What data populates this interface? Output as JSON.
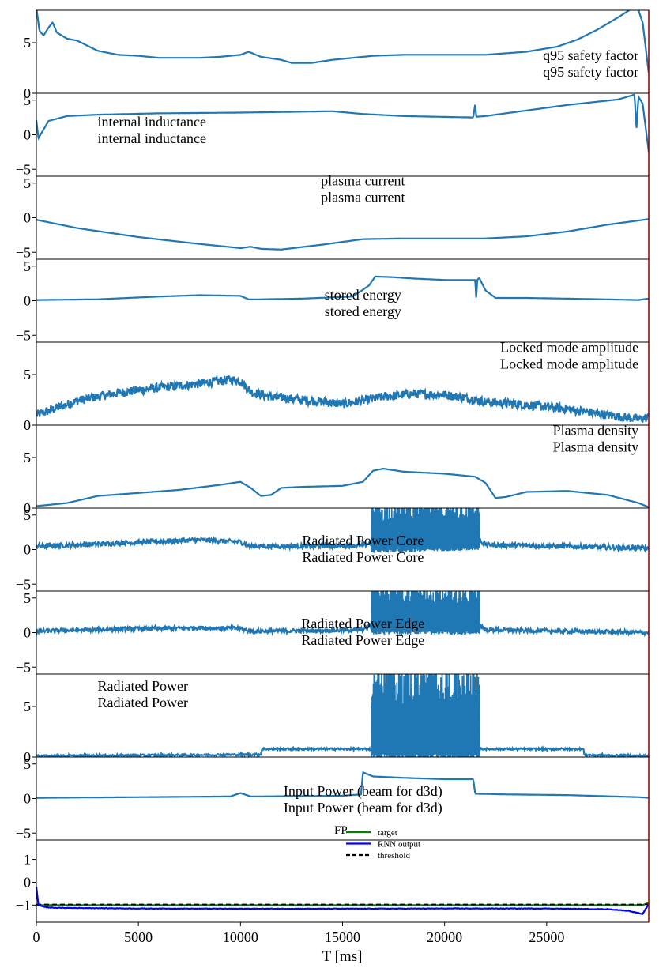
{
  "chart_data": {
    "type": "line",
    "xlabel": "T [ms]",
    "xlim": [
      0,
      30000
    ],
    "xticks": [
      0,
      5000,
      10000,
      15000,
      20000,
      25000
    ],
    "disruption_marker_color": "#8b0000",
    "series_color": "#1f77b4",
    "panels": [
      {
        "label": "q95 safety factor",
        "label_repeat": "q95 safety factor",
        "label_anchor": "end",
        "label_x": 29500,
        "label_y_frac": 0.75,
        "ylim": [
          0,
          8.2
        ],
        "yticks": [
          0,
          5
        ],
        "noise": 0,
        "points": [
          [
            0,
            8.5
          ],
          [
            150,
            6.2
          ],
          [
            350,
            5.7
          ],
          [
            600,
            6.5
          ],
          [
            800,
            7.0
          ],
          [
            1000,
            6.0
          ],
          [
            1500,
            5.4
          ],
          [
            2000,
            5.2
          ],
          [
            3000,
            4.2
          ],
          [
            4000,
            3.8
          ],
          [
            5000,
            3.7
          ],
          [
            6000,
            3.5
          ],
          [
            7000,
            3.5
          ],
          [
            8000,
            3.5
          ],
          [
            9000,
            3.6
          ],
          [
            10000,
            3.8
          ],
          [
            10400,
            4.1
          ],
          [
            11000,
            3.6
          ],
          [
            12000,
            3.3
          ],
          [
            12500,
            3.0
          ],
          [
            13500,
            3.0
          ],
          [
            14500,
            3.3
          ],
          [
            15500,
            3.5
          ],
          [
            16500,
            3.7
          ],
          [
            18000,
            3.8
          ],
          [
            20000,
            3.8
          ],
          [
            22000,
            3.8
          ],
          [
            24000,
            4.1
          ],
          [
            25500,
            4.6
          ],
          [
            26500,
            5.3
          ],
          [
            27500,
            6.3
          ],
          [
            28500,
            7.5
          ],
          [
            29200,
            8.4
          ],
          [
            29500,
            8.2
          ],
          [
            29700,
            7.0
          ],
          [
            30000,
            2.0
          ]
        ]
      },
      {
        "label": "internal inductance",
        "label_repeat": "internal inductance",
        "label_anchor": "start",
        "label_x": 3000,
        "label_y_frac": 0.55,
        "ylim": [
          -6,
          6
        ],
        "yticks": [
          -5,
          0,
          5
        ],
        "noise": 0,
        "points": [
          [
            0,
            2.1
          ],
          [
            100,
            -0.5
          ],
          [
            300,
            0.5
          ],
          [
            600,
            2.0
          ],
          [
            1500,
            2.7
          ],
          [
            3000,
            2.9
          ],
          [
            6000,
            3.1
          ],
          [
            10000,
            3.2
          ],
          [
            14500,
            3.4
          ],
          [
            16000,
            3.0
          ],
          [
            18000,
            2.7
          ],
          [
            21400,
            2.5
          ],
          [
            21500,
            4.5
          ],
          [
            21550,
            2.6
          ],
          [
            22000,
            2.7
          ],
          [
            24000,
            3.5
          ],
          [
            26000,
            4.3
          ],
          [
            28500,
            5.1
          ],
          [
            29300,
            5.8
          ],
          [
            29400,
            1.0
          ],
          [
            29500,
            5.5
          ],
          [
            29700,
            4.5
          ],
          [
            30000,
            -2.5
          ]
        ]
      },
      {
        "label": "plasma current",
        "label_repeat": "plasma current",
        "label_anchor": "middle",
        "label_x": 16000,
        "label_y_frac": 0.26,
        "ylim": [
          -6,
          6
        ],
        "yticks": [
          -5,
          0,
          5
        ],
        "noise": 0,
        "points": [
          [
            0,
            -0.3
          ],
          [
            2000,
            -1.5
          ],
          [
            5000,
            -2.8
          ],
          [
            8000,
            -3.8
          ],
          [
            10000,
            -4.4
          ],
          [
            10500,
            -4.2
          ],
          [
            11000,
            -4.5
          ],
          [
            12000,
            -4.6
          ],
          [
            14000,
            -3.9
          ],
          [
            16000,
            -3.1
          ],
          [
            18000,
            -3.0
          ],
          [
            20000,
            -3.0
          ],
          [
            22000,
            -3.0
          ],
          [
            24000,
            -2.7
          ],
          [
            26000,
            -2.0
          ],
          [
            28000,
            -1.0
          ],
          [
            30000,
            -0.2
          ]
        ]
      },
      {
        "label": "stored energy",
        "label_repeat": "stored energy",
        "label_anchor": "middle",
        "label_x": 16000,
        "label_y_frac": 0.64,
        "ylim": [
          -6,
          6
        ],
        "yticks": [
          -5,
          0,
          5
        ],
        "noise": 0,
        "points": [
          [
            0,
            0.1
          ],
          [
            3000,
            0.2
          ],
          [
            6000,
            0.6
          ],
          [
            8000,
            0.8
          ],
          [
            10000,
            0.7
          ],
          [
            10400,
            0.2
          ],
          [
            11000,
            0.2
          ],
          [
            13000,
            0.3
          ],
          [
            15500,
            0.6
          ],
          [
            16300,
            2.2
          ],
          [
            16600,
            3.5
          ],
          [
            17500,
            3.4
          ],
          [
            18500,
            3.2
          ],
          [
            20000,
            3.0
          ],
          [
            21500,
            3.0
          ],
          [
            21550,
            0.2
          ],
          [
            21600,
            3.0
          ],
          [
            21700,
            3.3
          ],
          [
            22000,
            1.5
          ],
          [
            22500,
            0.4
          ],
          [
            24000,
            0.4
          ],
          [
            26000,
            0.3
          ],
          [
            29500,
            0.1
          ],
          [
            30000,
            0.3
          ]
        ]
      },
      {
        "label": "Locked mode amplitude",
        "label_repeat": "Locked mode amplitude",
        "label_anchor": "end",
        "label_x": 29500,
        "label_y_frac": 0.27,
        "ylim": [
          0,
          8.2
        ],
        "yticks": [
          0,
          5
        ],
        "noise": 0.45,
        "points": [
          [
            0,
            1.0
          ],
          [
            2000,
            2.4
          ],
          [
            4000,
            3.2
          ],
          [
            6000,
            3.7
          ],
          [
            8000,
            4.1
          ],
          [
            9500,
            4.5
          ],
          [
            10000,
            4.4
          ],
          [
            10500,
            3.3
          ],
          [
            11500,
            2.8
          ],
          [
            13000,
            2.5
          ],
          [
            15000,
            2.1
          ],
          [
            16000,
            2.4
          ],
          [
            17000,
            2.8
          ],
          [
            18500,
            3.1
          ],
          [
            20000,
            3.0
          ],
          [
            21000,
            2.7
          ],
          [
            22000,
            2.3
          ],
          [
            24000,
            2.0
          ],
          [
            26000,
            1.6
          ],
          [
            28000,
            1.0
          ],
          [
            29500,
            0.6
          ],
          [
            30000,
            0.8
          ]
        ]
      },
      {
        "label": "Plasma density",
        "label_repeat": "Plasma density",
        "label_anchor": "end",
        "label_x": 29500,
        "label_y_frac": 0.27,
        "ylim": [
          0,
          8.2
        ],
        "yticks": [
          0,
          5
        ],
        "noise": 0,
        "points": [
          [
            0,
            0.2
          ],
          [
            1500,
            0.5
          ],
          [
            3000,
            1.2
          ],
          [
            5000,
            1.5
          ],
          [
            7000,
            1.8
          ],
          [
            9000,
            2.3
          ],
          [
            10000,
            2.6
          ],
          [
            10500,
            2.0
          ],
          [
            11000,
            1.2
          ],
          [
            11500,
            1.3
          ],
          [
            12000,
            2.0
          ],
          [
            13000,
            2.1
          ],
          [
            15000,
            2.2
          ],
          [
            16000,
            2.6
          ],
          [
            16500,
            3.7
          ],
          [
            17000,
            3.9
          ],
          [
            18000,
            3.6
          ],
          [
            20000,
            3.4
          ],
          [
            21500,
            3.1
          ],
          [
            22000,
            2.5
          ],
          [
            22500,
            1.0
          ],
          [
            23000,
            1.1
          ],
          [
            24000,
            1.6
          ],
          [
            26000,
            1.7
          ],
          [
            28000,
            1.3
          ],
          [
            29500,
            0.5
          ],
          [
            30000,
            0.1
          ]
        ]
      },
      {
        "label": "Radiated Power Core",
        "label_repeat": "Radiated Power Core",
        "label_anchor": "middle",
        "label_x": 16000,
        "label_y_frac": 0.6,
        "ylim": [
          -6,
          6
        ],
        "yticks": [
          -5,
          0,
          5
        ],
        "noise": 0.35,
        "burst": [
          16400,
          21700,
          1.0,
          6.5
        ],
        "points": [
          [
            0,
            0.5
          ],
          [
            3000,
            0.8
          ],
          [
            6000,
            1.2
          ],
          [
            8000,
            1.4
          ],
          [
            10000,
            1.1
          ],
          [
            10500,
            0.5
          ],
          [
            13000,
            0.5
          ],
          [
            16000,
            0.6
          ],
          [
            16400,
            1.0
          ],
          [
            21700,
            1.4
          ],
          [
            22000,
            0.7
          ],
          [
            24000,
            0.6
          ],
          [
            30000,
            0.2
          ]
        ]
      },
      {
        "label": "Radiated Power Edge",
        "label_repeat": "Radiated Power Edge",
        "label_anchor": "middle",
        "label_x": 16000,
        "label_y_frac": 0.6,
        "ylim": [
          -6,
          6
        ],
        "yticks": [
          -5,
          0,
          5
        ],
        "noise": 0.3,
        "burst": [
          16400,
          21700,
          1.0,
          6.5
        ],
        "points": [
          [
            0,
            0.2
          ],
          [
            4000,
            0.5
          ],
          [
            8000,
            0.7
          ],
          [
            10000,
            0.6
          ],
          [
            10500,
            0.2
          ],
          [
            14000,
            0.3
          ],
          [
            16000,
            0.4
          ],
          [
            16400,
            1.2
          ],
          [
            21700,
            1.2
          ],
          [
            22000,
            0.4
          ],
          [
            26000,
            0.2
          ],
          [
            30000,
            0.0
          ]
        ]
      },
      {
        "label": "Radiated Power",
        "label_repeat": "Radiated Power",
        "label_anchor": "start",
        "label_x": 3000,
        "label_y_frac": 0.35,
        "ylim": [
          0,
          8.2
        ],
        "yticks": [
          0,
          5
        ],
        "noise": 0.1,
        "burst": [
          16400,
          21700,
          0.5,
          8.5
        ],
        "points": [
          [
            0,
            0.1
          ],
          [
            11000,
            0.25
          ],
          [
            11050,
            0.8
          ],
          [
            16400,
            0.8
          ],
          [
            21700,
            0.8
          ],
          [
            22000,
            0.8
          ],
          [
            26800,
            0.8
          ],
          [
            26850,
            0.2
          ],
          [
            30000,
            0.1
          ]
        ]
      },
      {
        "label": "Input Power (beam for d3d)",
        "label_repeat": "Input Power (beam for d3d)",
        "label_anchor": "middle",
        "label_x": 16000,
        "label_y_frac": 0.62,
        "ylim": [
          -6,
          6
        ],
        "yticks": [
          -5,
          0,
          5
        ],
        "noise": 0,
        "points": [
          [
            0,
            0.1
          ],
          [
            5000,
            0.2
          ],
          [
            9500,
            0.3
          ],
          [
            10000,
            0.8
          ],
          [
            10500,
            0.3
          ],
          [
            15000,
            0.4
          ],
          [
            15900,
            0.6
          ],
          [
            16000,
            3.8
          ],
          [
            16500,
            3.2
          ],
          [
            18000,
            3.0
          ],
          [
            20000,
            2.8
          ],
          [
            21400,
            2.8
          ],
          [
            21500,
            0.7
          ],
          [
            23000,
            0.6
          ],
          [
            26000,
            0.5
          ],
          [
            29500,
            0.2
          ],
          [
            30000,
            0.1
          ]
        ]
      }
    ],
    "output_panel": {
      "title_tag": "FP",
      "ylim": [
        -1.75,
        1.85
      ],
      "yticks": [
        -1,
        0,
        1
      ],
      "legend": [
        {
          "label": "target",
          "color": "#008000",
          "style": "solid"
        },
        {
          "label": "RNN output",
          "color": "#0000ff",
          "style": "solid"
        },
        {
          "label": "threshold",
          "color": "#000000",
          "style": "dashed"
        }
      ],
      "target": [
        [
          0,
          -1
        ],
        [
          29700,
          -1
        ],
        [
          30000,
          -0.9
        ]
      ],
      "threshold": -0.97,
      "rnn_output": [
        [
          0,
          -0.2
        ],
        [
          100,
          -1.0
        ],
        [
          500,
          -1.1
        ],
        [
          1000,
          -1.12
        ],
        [
          5000,
          -1.15
        ],
        [
          10000,
          -1.16
        ],
        [
          15000,
          -1.16
        ],
        [
          20000,
          -1.15
        ],
        [
          25000,
          -1.15
        ],
        [
          28000,
          -1.18
        ],
        [
          29000,
          -1.25
        ],
        [
          29500,
          -1.35
        ],
        [
          29700,
          -1.4
        ],
        [
          30000,
          -0.95
        ]
      ]
    }
  }
}
